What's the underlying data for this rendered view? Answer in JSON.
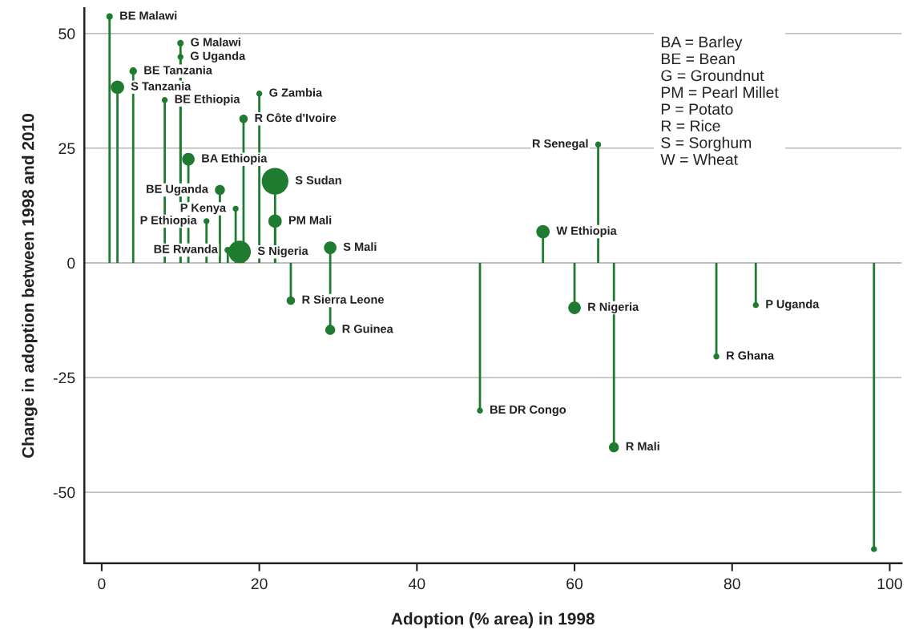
{
  "chart_data": {
    "type": "lollipop",
    "xlabel": "Adoption (% area) in 1998",
    "ylabel": "Change in adoption between 1998 and 2010",
    "x": [
      1,
      2,
      4,
      8,
      10,
      10,
      20,
      18,
      11,
      15,
      22,
      17,
      22,
      13.3,
      16,
      17.5,
      29,
      24,
      29,
      48,
      56,
      60,
      63,
      65,
      78,
      83,
      98
    ],
    "series": [
      {
        "color": "#1e7b30",
        "values": [
          53.7,
          38.3,
          41.8,
          35.5,
          47.9,
          44.9,
          36.9,
          31.4,
          22.6,
          15.9,
          17.8,
          11.8,
          9.1,
          9.1,
          2.8,
          2.4,
          3.3,
          -8.2,
          -14.6,
          -32.2,
          6.8,
          -9.8,
          25.8,
          -40.2,
          -20.4,
          -9.2,
          -62.4
        ],
        "sizes": [
          0.06,
          0.25,
          0.08,
          0.05,
          0.06,
          0.05,
          0.05,
          0.1,
          0.22,
          0.14,
          1,
          0.05,
          0.25,
          0.05,
          0.06,
          0.71,
          0.22,
          0.1,
          0.14,
          0.05,
          0.25,
          0.22,
          0.05,
          0.14,
          0.05,
          0.05,
          0.05
        ]
      }
    ],
    "xlim": [
      -2.2,
      101.5
    ],
    "ylim": [
      -65.5,
      55.5
    ],
    "xticks": [
      0,
      20,
      40,
      60,
      80,
      100
    ],
    "yticks": [
      -50,
      -25,
      0,
      25,
      50
    ],
    "grid": "y",
    "marker": "circle",
    "annotations": [
      {
        "text": "BE Malawi",
        "x": 1,
        "y": 53.7
      },
      {
        "text": "S Tanzania",
        "x": 2,
        "y": 38.3
      },
      {
        "text": "BE Tanzania",
        "x": 4,
        "y": 41.8
      },
      {
        "text": "BE Ethiopia",
        "x": 8,
        "y": 35.5
      },
      {
        "text": "G Malawi",
        "x": 10,
        "y": 47.9
      },
      {
        "text": "G Uganda",
        "x": 10,
        "y": 44.9
      },
      {
        "text": "G Zambia",
        "x": 20,
        "y": 36.9
      },
      {
        "text": "R Côte d'Ivoire",
        "x": 18,
        "y": 31.4
      },
      {
        "text": "BA Ethiopia",
        "x": 11,
        "y": 22.6
      },
      {
        "text": "BE Uganda",
        "x": 15,
        "y": 15.9
      },
      {
        "text": "S Sudan",
        "x": 22,
        "y": 17.8
      },
      {
        "text": "P Kenya",
        "x": 17,
        "y": 11.8
      },
      {
        "text": "PM Mali",
        "x": 22,
        "y": 9.1
      },
      {
        "text": "P Ethiopia",
        "x": 13.3,
        "y": 9.1
      },
      {
        "text": "BE Rwanda",
        "x": 16,
        "y": 2.8
      },
      {
        "text": "S Nigeria",
        "x": 17.5,
        "y": 2.4
      },
      {
        "text": "S Mali",
        "x": 29,
        "y": 3.3
      },
      {
        "text": "R Sierra Leone",
        "x": 24,
        "y": -8.2
      },
      {
        "text": "R Guinea",
        "x": 29,
        "y": -14.6
      },
      {
        "text": "BE DR Congo",
        "x": 48,
        "y": -32.2
      },
      {
        "text": "W Ethiopia",
        "x": 56,
        "y": 6.8
      },
      {
        "text": "R Nigeria",
        "x": 60,
        "y": -9.8
      },
      {
        "text": "R Senegal",
        "x": 63,
        "y": 25.8
      },
      {
        "text": "R Mali",
        "x": 65,
        "y": -40.2
      },
      {
        "text": "R Ghana",
        "x": 78,
        "y": -20.4
      },
      {
        "text": "P Uganda",
        "x": 83,
        "y": -9.2
      },
      "BA = Barley\nBE = Bean\nG = Groundnut\nPM = Pearl Millet\nP = Potato\nR = Rice\nS = Sorghum\nW = Wheat"
    ]
  }
}
